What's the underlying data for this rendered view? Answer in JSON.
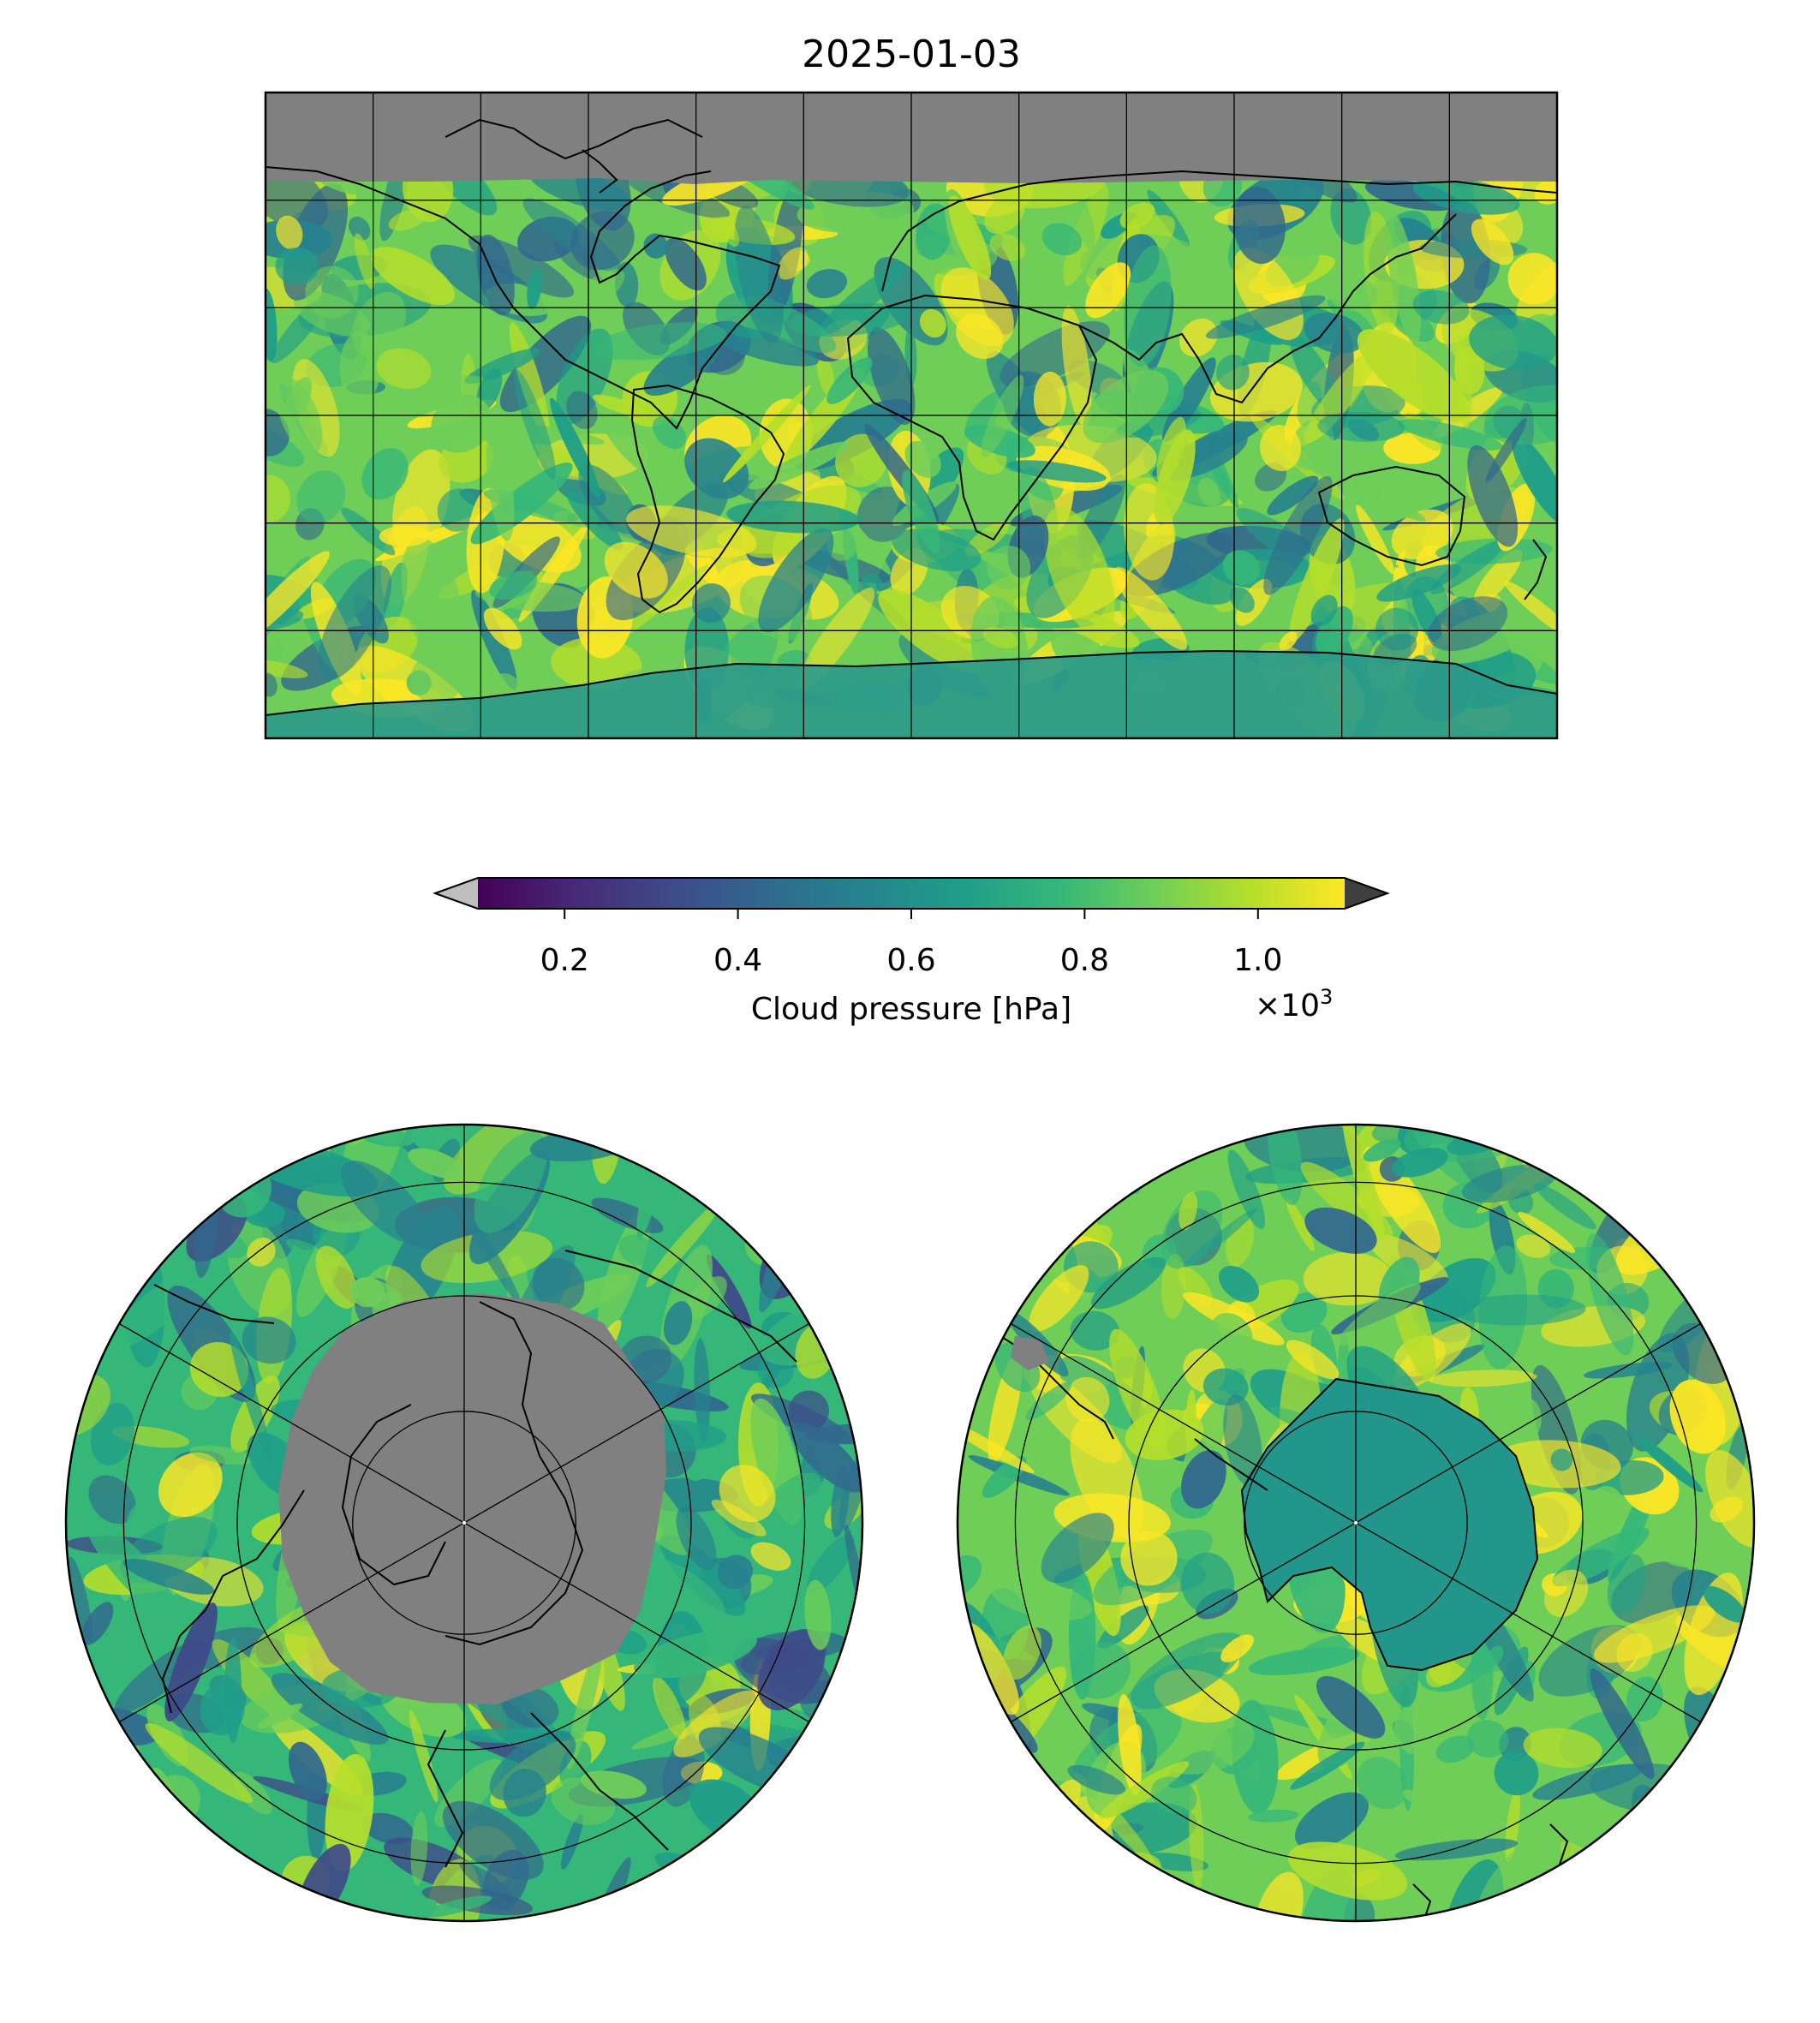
{
  "title": "2025-01-03",
  "colorbar": {
    "label": "Cloud pressure [hPa]",
    "ticks": [
      "0.2",
      "0.4",
      "0.6",
      "0.8",
      "1.0"
    ],
    "tick_values": [
      0.2,
      0.4,
      0.6,
      0.8,
      1.0
    ],
    "range": [
      0.1,
      1.1
    ],
    "multiplier_base": "×10",
    "multiplier_exp": "3",
    "colormap": [
      "#440154",
      "#482878",
      "#3e4a89",
      "#31688e",
      "#26828e",
      "#1f9e89",
      "#35b779",
      "#6ece58",
      "#b5de2b",
      "#fde725"
    ],
    "extend_under_color": "#bfbfbf",
    "extend_over_color": "#3f3f3f"
  },
  "missing_data_color": "#808080",
  "panels": {
    "global": {
      "projection": "equirectangular"
    },
    "north_polar": {
      "projection": "north polar stereographic"
    },
    "south_polar": {
      "projection": "south polar stereographic"
    }
  }
}
